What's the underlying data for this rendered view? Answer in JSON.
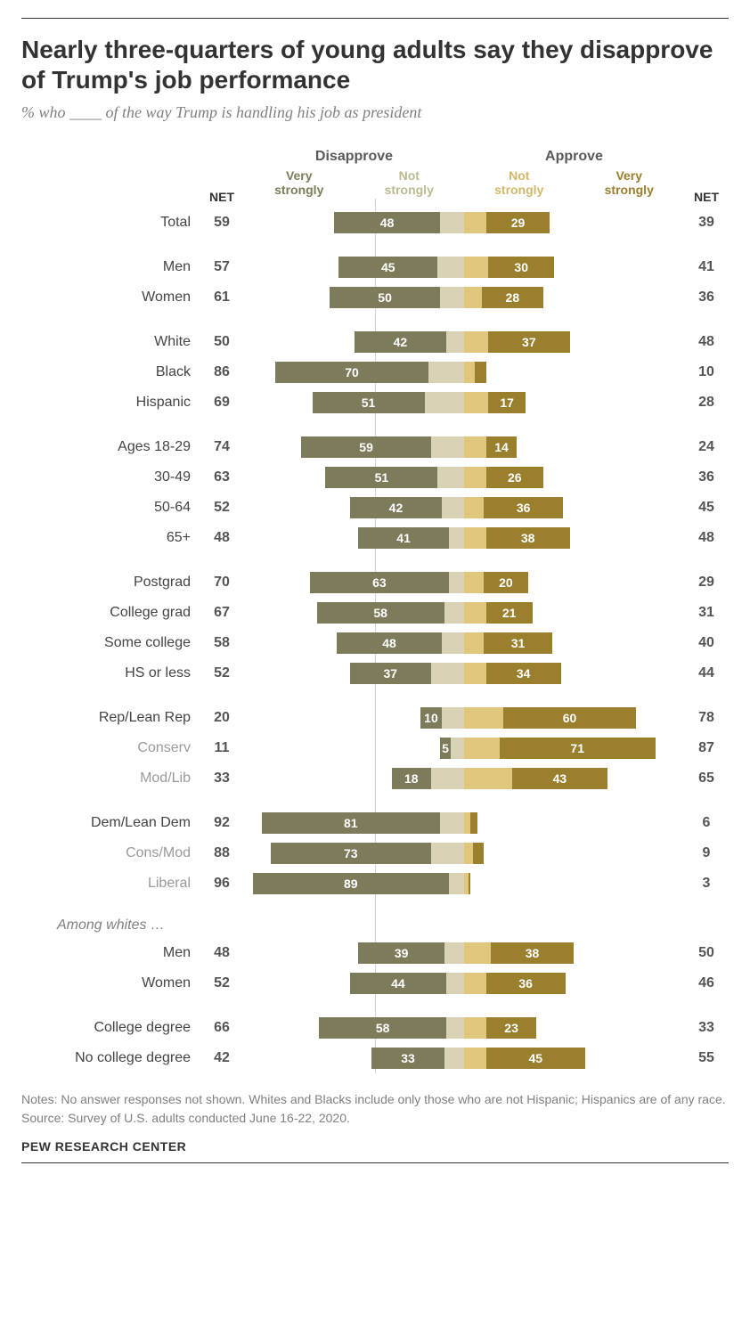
{
  "title": "Nearly three-quarters of young adults say they disapprove of Trump's job performance",
  "subtitle": "% who ____ of the way Trump is handling his job as president",
  "headers": {
    "disapprove": "Disapprove",
    "approve": "Approve",
    "very_strongly": "Very\nstrongly",
    "not_strongly": "Not\nstrongly",
    "net": "NET"
  },
  "colors": {
    "disapprove_strong": "#7e7b5b",
    "disapprove_weak": "#d7d3b4",
    "approve_weak": "#e1c77e",
    "approve_strong": "#9a7f2d",
    "text_subhead_dis_strong": "#7e7b5b",
    "text_subhead_dis_weak": "#bdb990",
    "text_subhead_app_weak": "#d1b96a",
    "text_subhead_app_strong": "#9a7f2d"
  },
  "scale_max": 100,
  "rows": [
    {
      "type": "row",
      "label": "Total",
      "dvs": 48,
      "dns": 11,
      "ans": 10,
      "avs": 29,
      "dnet": 59,
      "anet": 39
    },
    {
      "type": "spacer"
    },
    {
      "type": "row",
      "label": "Men",
      "dvs": 45,
      "dns": 12,
      "ans": 11,
      "avs": 30,
      "dnet": 57,
      "anet": 41
    },
    {
      "type": "row",
      "label": "Women",
      "dvs": 50,
      "dns": 11,
      "ans": 8,
      "avs": 28,
      "dnet": 61,
      "anet": 36
    },
    {
      "type": "spacer"
    },
    {
      "type": "row",
      "label": "White",
      "dvs": 42,
      "dns": 8,
      "ans": 11,
      "avs": 37,
      "dnet": 50,
      "anet": 48
    },
    {
      "type": "row",
      "label": "Black",
      "dvs": 70,
      "dns": 16,
      "ans": 5,
      "avs": 5,
      "dnet": 86,
      "anet": 10,
      "hide_avs_label": true
    },
    {
      "type": "row",
      "label": "Hispanic",
      "dvs": 51,
      "dns": 18,
      "ans": 11,
      "avs": 17,
      "dnet": 69,
      "anet": 28
    },
    {
      "type": "spacer"
    },
    {
      "type": "row",
      "label": "Ages 18-29",
      "dvs": 59,
      "dns": 15,
      "ans": 10,
      "avs": 14,
      "dnet": 74,
      "anet": 24
    },
    {
      "type": "row",
      "label": "30-49",
      "dvs": 51,
      "dns": 12,
      "ans": 10,
      "avs": 26,
      "dnet": 63,
      "anet": 36
    },
    {
      "type": "row",
      "label": "50-64",
      "dvs": 42,
      "dns": 10,
      "ans": 9,
      "avs": 36,
      "dnet": 52,
      "anet": 45
    },
    {
      "type": "row",
      "label": "65+",
      "dvs": 41,
      "dns": 7,
      "ans": 10,
      "avs": 38,
      "dnet": 48,
      "anet": 48
    },
    {
      "type": "spacer"
    },
    {
      "type": "row",
      "label": "Postgrad",
      "dvs": 63,
      "dns": 7,
      "ans": 9,
      "avs": 20,
      "dnet": 70,
      "anet": 29
    },
    {
      "type": "row",
      "label": "College grad",
      "dvs": 58,
      "dns": 9,
      "ans": 10,
      "avs": 21,
      "dnet": 67,
      "anet": 31
    },
    {
      "type": "row",
      "label": "Some college",
      "dvs": 48,
      "dns": 10,
      "ans": 9,
      "avs": 31,
      "dnet": 58,
      "anet": 40
    },
    {
      "type": "row",
      "label": "HS or less",
      "dvs": 37,
      "dns": 15,
      "ans": 10,
      "avs": 34,
      "dnet": 52,
      "anet": 44
    },
    {
      "type": "spacer"
    },
    {
      "type": "row",
      "label": "Rep/Lean Rep",
      "dvs": 10,
      "dns": 10,
      "ans": 18,
      "avs": 60,
      "dnet": 20,
      "anet": 78
    },
    {
      "type": "row",
      "label": "Conserv",
      "muted": true,
      "dvs": 5,
      "dns": 6,
      "ans": 16,
      "avs": 71,
      "dnet": 11,
      "anet": 87
    },
    {
      "type": "row",
      "label": "Mod/Lib",
      "muted": true,
      "dvs": 18,
      "dns": 15,
      "ans": 22,
      "avs": 43,
      "dnet": 33,
      "anet": 65
    },
    {
      "type": "spacer"
    },
    {
      "type": "row",
      "label": "Dem/Lean Dem",
      "dvs": 81,
      "dns": 11,
      "ans": 3,
      "avs": 3,
      "dnet": 92,
      "anet": 6,
      "hide_avs_label": true
    },
    {
      "type": "row",
      "label": "Cons/Mod",
      "muted": true,
      "dvs": 73,
      "dns": 15,
      "ans": 4,
      "avs": 5,
      "dnet": 88,
      "anet": 9,
      "hide_avs_label": true
    },
    {
      "type": "row",
      "label": "Liberal",
      "muted": true,
      "dvs": 89,
      "dns": 7,
      "ans": 2,
      "avs": 1,
      "dnet": 96,
      "anet": 3,
      "hide_avs_label": true
    },
    {
      "type": "spacer"
    },
    {
      "type": "heading",
      "label": "Among whites …"
    },
    {
      "type": "row",
      "label": "Men",
      "dvs": 39,
      "dns": 9,
      "ans": 12,
      "avs": 38,
      "dnet": 48,
      "anet": 50
    },
    {
      "type": "row",
      "label": "Women",
      "dvs": 44,
      "dns": 8,
      "ans": 10,
      "avs": 36,
      "dnet": 52,
      "anet": 46
    },
    {
      "type": "spacer"
    },
    {
      "type": "row",
      "label": "College degree",
      "dvs": 58,
      "dns": 8,
      "ans": 10,
      "avs": 23,
      "dnet": 66,
      "anet": 33
    },
    {
      "type": "row",
      "label": "No college degree",
      "dvs": 33,
      "dns": 9,
      "ans": 10,
      "avs": 45,
      "dnet": 42,
      "anet": 55
    }
  ],
  "notes": "Notes: No answer responses not shown. Whites and Blacks include only those who are not Hispanic; Hispanics are of any race.",
  "source_text": "Source: Survey of U.S. adults conducted June 16-22, 2020.",
  "footer": "PEW RESEARCH CENTER"
}
